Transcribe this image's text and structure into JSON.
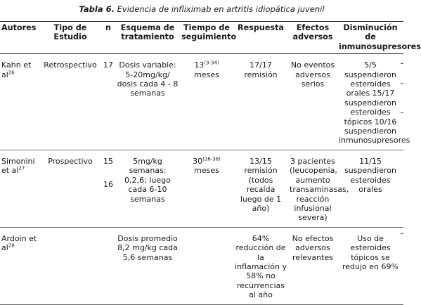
{
  "caption": {
    "label": "Tabla 6.",
    "text": "Evidencia de infliximab en artritis idiopática juvenil"
  },
  "headers": {
    "autores": "Autores",
    "tipo": "Tipo de Estudio",
    "n": "n",
    "esquema": "Esquema de tratamiento",
    "tiempo": "Tiempo de seguimiento",
    "respuesta": "Respuesta",
    "efectos": "Efectos adversos",
    "disminucion": "Disminución de inmunosupresores"
  },
  "rows": [
    {
      "autor": "Kahn et al",
      "ref": "26",
      "tipo": "Retrospectivo",
      "n": "17",
      "n2": "",
      "esquema": "Dosis variable: 5-20mg/kg/ dosis cada 4 - 8 semanas",
      "tiempo": "13",
      "tiempo_ref": "(3-34)",
      "tiempo_unit": "meses",
      "respuesta": "17/17 remisión",
      "efectos": "No eventos adversos serios",
      "disminucion": "5/5 suspendieron esteroides orales 15/17 suspendieron esteroides tópicos 10/16 suspendieron inmunosupresores"
    },
    {
      "autor": "Simonini et al",
      "ref": "27",
      "tipo": "Prospectivo",
      "n": "15",
      "n2": "16",
      "esquema": "5mg/kg semanas: 0,2,6; luego cada 6-10 semanas",
      "tiempo": "30",
      "tiempo_ref": "(16-38)",
      "tiempo_unit": "meses",
      "respuesta": "13/15 remisión (todos recaída luego de 1 año)",
      "efectos": "3 pacientes (leucopenia, aumento transaminasas, reacción infusional severa)",
      "disminucion": "11/15 suspendieron esteroides orales"
    },
    {
      "autor": "Ardoin et al",
      "ref": "28",
      "tipo": "",
      "n": "",
      "n2": "",
      "esquema": "Dosis promedio 8,2 mg/kg cada 5,6 semanas",
      "tiempo": "",
      "tiempo_ref": "",
      "tiempo_unit": "",
      "respuesta": "64% reducción de la inflamación y 58% no recurrencias al año",
      "efectos": "No efectos adversos relevantes",
      "disminucion": "Uso de esteroides tópicos se redujo en 69%"
    }
  ]
}
